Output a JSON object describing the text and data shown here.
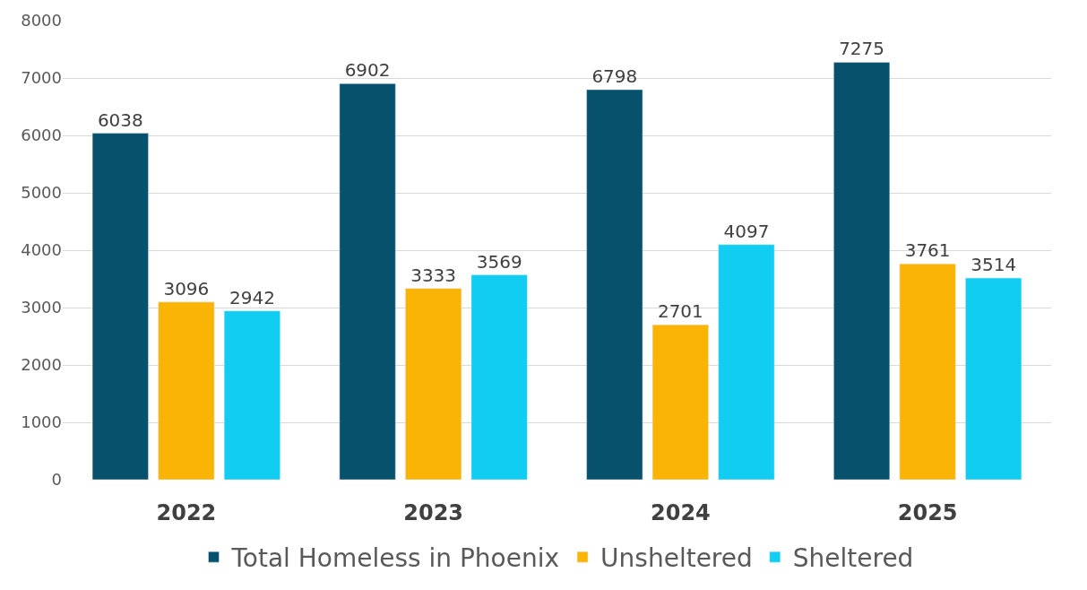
{
  "chart_data": {
    "type": "bar",
    "categories": [
      "2022",
      "2023",
      "2024",
      "2025"
    ],
    "series": [
      {
        "name": "Total Homeless in Phoenix",
        "color": "#08516d",
        "values": [
          6038,
          6902,
          6798,
          7275
        ]
      },
      {
        "name": "Unsheltered",
        "color": "#fab406",
        "values": [
          3096,
          3333,
          2701,
          3761
        ]
      },
      {
        "name": "Sheltered",
        "color": "#12cdf2",
        "values": [
          2942,
          3569,
          4097,
          3514
        ]
      }
    ],
    "ylim": [
      0,
      8000
    ],
    "yticks": [
      0,
      1000,
      2000,
      3000,
      4000,
      5000,
      6000,
      7000,
      8000
    ],
    "grid": "y",
    "legend": "bottom",
    "data_labels": true
  }
}
